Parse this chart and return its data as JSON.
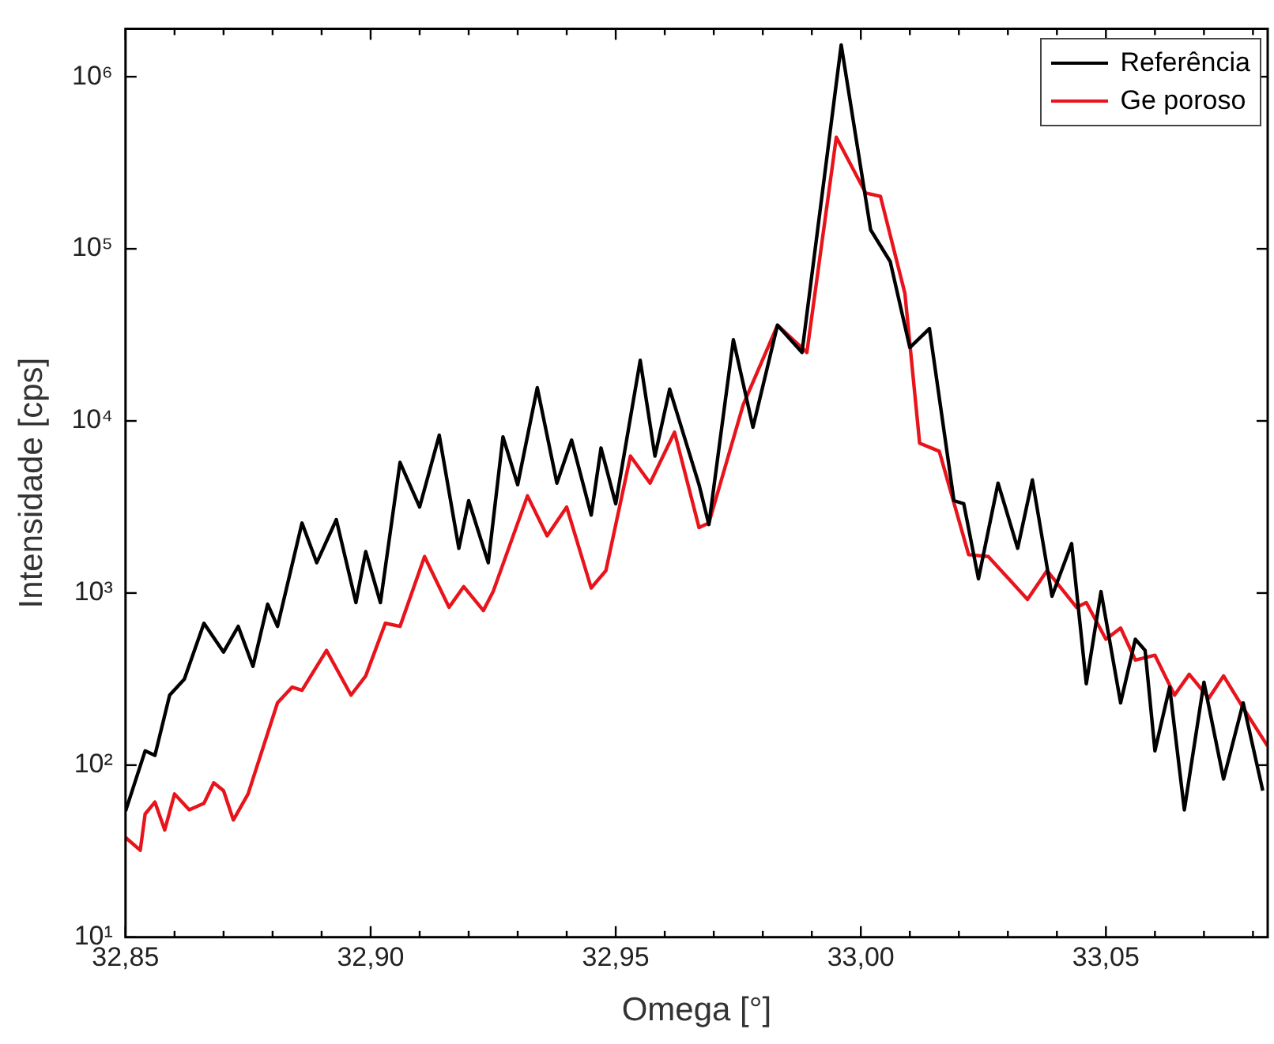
{
  "chart_data": {
    "type": "line",
    "xlabel": "Omega [°]",
    "ylabel": "Intensidade [cps]",
    "log": "y",
    "grid": false,
    "legend": "top right",
    "marker": "none",
    "line_style": "solid",
    "xlim": [
      32.85,
      33.083
    ],
    "xticks": [
      {
        "value": 32.85,
        "label": "32,85"
      },
      {
        "value": 32.86,
        "label": null
      },
      {
        "value": 32.87,
        "label": null
      },
      {
        "value": 32.88,
        "label": null
      },
      {
        "value": 32.89,
        "label": null
      },
      {
        "value": 32.9,
        "label": "32,90"
      },
      {
        "value": 32.91,
        "label": null
      },
      {
        "value": 32.92,
        "label": null
      },
      {
        "value": 32.93,
        "label": null
      },
      {
        "value": 32.94,
        "label": null
      },
      {
        "value": 32.95,
        "label": "32,95"
      },
      {
        "value": 32.96,
        "label": null
      },
      {
        "value": 32.97,
        "label": null
      },
      {
        "value": 32.98,
        "label": null
      },
      {
        "value": 32.99,
        "label": null
      },
      {
        "value": 33,
        "label": "33,00"
      },
      {
        "value": 33.01,
        "label": null
      },
      {
        "value": 33.02,
        "label": null
      },
      {
        "value": 33.03,
        "label": null
      },
      {
        "value": 33.04,
        "label": null
      },
      {
        "value": 33.05,
        "label": "33,05"
      },
      {
        "value": 33.06,
        "label": null
      },
      {
        "value": 33.07,
        "label": null
      },
      {
        "value": 33.08,
        "label": null
      }
    ],
    "ylim": [
      10,
      1900000
    ],
    "yticks": [
      {
        "value": 10,
        "label": "10¹"
      },
      {
        "value": 100,
        "label": "10²"
      },
      {
        "value": 1000,
        "label": "10³"
      },
      {
        "value": 10000,
        "label": "10⁴"
      },
      {
        "value": 100000,
        "label": "10⁵"
      },
      {
        "value": 1000000,
        "label": "10⁶"
      }
    ],
    "series": [
      {
        "name": "Referência",
        "color": "#000000",
        "x": [
          32.85,
          32.854,
          32.856,
          32.859,
          32.862,
          32.866,
          32.87,
          32.873,
          32.876,
          32.879,
          32.881,
          32.886,
          32.889,
          32.893,
          32.897,
          32.899,
          32.902,
          32.906,
          32.91,
          32.914,
          32.918,
          32.92,
          32.924,
          32.927,
          32.93,
          32.934,
          32.938,
          32.941,
          32.945,
          32.947,
          32.95,
          32.955,
          32.958,
          32.961,
          32.967,
          32.969,
          32.974,
          32.978,
          32.983,
          32.988,
          32.996,
          33.002,
          33.006,
          33.01,
          33.014,
          33.019,
          33.021,
          33.024,
          33.028,
          33.032,
          33.035,
          33.039,
          33.043,
          33.046,
          33.049,
          33.053,
          33.056,
          33.058,
          33.06,
          33.063,
          33.066,
          33.07,
          33.074,
          33.078,
          33.082
        ],
        "values": [
          54,
          121,
          114,
          255,
          316,
          667,
          454,
          640,
          375,
          861,
          640,
          2550,
          1500,
          2670,
          880,
          1740,
          880,
          5740,
          3160,
          8260,
          1820,
          3440,
          1500,
          8080,
          4260,
          15600,
          4350,
          7740,
          2840,
          6960,
          3300,
          22500,
          6250,
          15300,
          4260,
          2500,
          29600,
          9180,
          36000,
          25000,
          1530000,
          129000,
          84300,
          26700,
          34400,
          3440,
          3300,
          1210,
          4350,
          1820,
          4540,
          958,
          1940,
          297,
          1020,
          230,
          539,
          464,
          121,
          284,
          55,
          303,
          83,
          230,
          71
        ]
      },
      {
        "name": "Ge poroso",
        "color": "#e8141c",
        "x": [
          32.85,
          32.853,
          32.854,
          32.856,
          32.858,
          32.86,
          32.863,
          32.866,
          32.868,
          32.87,
          32.872,
          32.875,
          32.881,
          32.884,
          32.886,
          32.891,
          32.896,
          32.899,
          32.903,
          32.906,
          32.911,
          32.916,
          32.919,
          32.923,
          32.925,
          32.932,
          32.936,
          32.94,
          32.945,
          32.948,
          32.953,
          32.957,
          32.962,
          32.967,
          32.969,
          32.976,
          32.983,
          32.989,
          32.995,
          33.001,
          33.004,
          33.009,
          33.012,
          33.016,
          33.022,
          33.026,
          33.034,
          33.038,
          33.044,
          33.046,
          33.05,
          33.053,
          33.056,
          33.06,
          33.064,
          33.067,
          33.071,
          33.074,
          33.078,
          33.083
        ],
        "values": [
          38,
          32,
          52,
          61,
          42,
          68,
          55,
          60,
          79,
          71,
          48,
          68,
          230,
          284,
          272,
          464,
          255,
          330,
          667,
          640,
          1630,
          826,
          1090,
          791,
          1020,
          3670,
          2150,
          3160,
          1070,
          1350,
          6250,
          4350,
          8610,
          2400,
          2550,
          12400,
          36000,
          25000,
          445000,
          211000,
          202000,
          55000,
          7420,
          6670,
          1670,
          1630,
          918,
          1350,
          826,
          880,
          539,
          626,
          408,
          435,
          255,
          337,
          245,
          330,
          215,
          129
        ]
      }
    ]
  }
}
